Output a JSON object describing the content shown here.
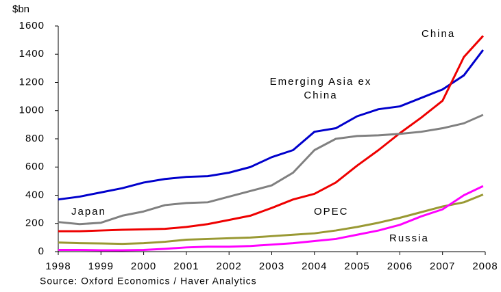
{
  "chart_data": {
    "type": "line",
    "y_unit": "$bn",
    "source": "Source: Oxford Economics / Haver Analytics",
    "x": [
      1998,
      1998.5,
      1999,
      1999.5,
      2000,
      2000.5,
      2001,
      2001.5,
      2002,
      2002.5,
      2003,
      2003.5,
      2004,
      2004.5,
      2005,
      2005.5,
      2006,
      2006.5,
      2007,
      2007.5,
      2007.95
    ],
    "series": [
      {
        "name": "Emerging Asia ex China",
        "color": "#0000cc",
        "values": [
          370,
          390,
          420,
          450,
          490,
          515,
          530,
          535,
          560,
          600,
          670,
          720,
          850,
          875,
          960,
          1010,
          1030,
          1090,
          1150,
          1250,
          1430
        ]
      },
      {
        "name": "China",
        "color": "#ee0000",
        "values": [
          145,
          145,
          150,
          155,
          158,
          162,
          175,
          195,
          225,
          255,
          310,
          370,
          410,
          490,
          610,
          720,
          840,
          950,
          1070,
          1380,
          1530
        ]
      },
      {
        "name": "Japan",
        "color": "#808080",
        "values": [
          210,
          195,
          205,
          255,
          285,
          330,
          345,
          350,
          390,
          430,
          470,
          560,
          720,
          800,
          820,
          825,
          835,
          850,
          875,
          910,
          970
        ]
      },
      {
        "name": "OPEC",
        "color": "#999933",
        "values": [
          65,
          60,
          58,
          55,
          60,
          70,
          85,
          90,
          95,
          100,
          110,
          120,
          130,
          150,
          175,
          205,
          240,
          280,
          320,
          350,
          405
        ]
      },
      {
        "name": "Russia",
        "color": "#ff00ff",
        "values": [
          12,
          12,
          10,
          10,
          12,
          20,
          30,
          35,
          35,
          40,
          50,
          60,
          75,
          90,
          120,
          150,
          190,
          250,
          300,
          400,
          465
        ]
      }
    ],
    "xlim": [
      1998,
      2008
    ],
    "xticks": [
      1998,
      1999,
      2000,
      2001,
      2002,
      2003,
      2004,
      2005,
      2006,
      2007,
      2008
    ],
    "ylim": [
      0,
      1600
    ],
    "yticks": [
      0,
      200,
      400,
      600,
      800,
      1000,
      1200,
      1400,
      1600
    ]
  }
}
